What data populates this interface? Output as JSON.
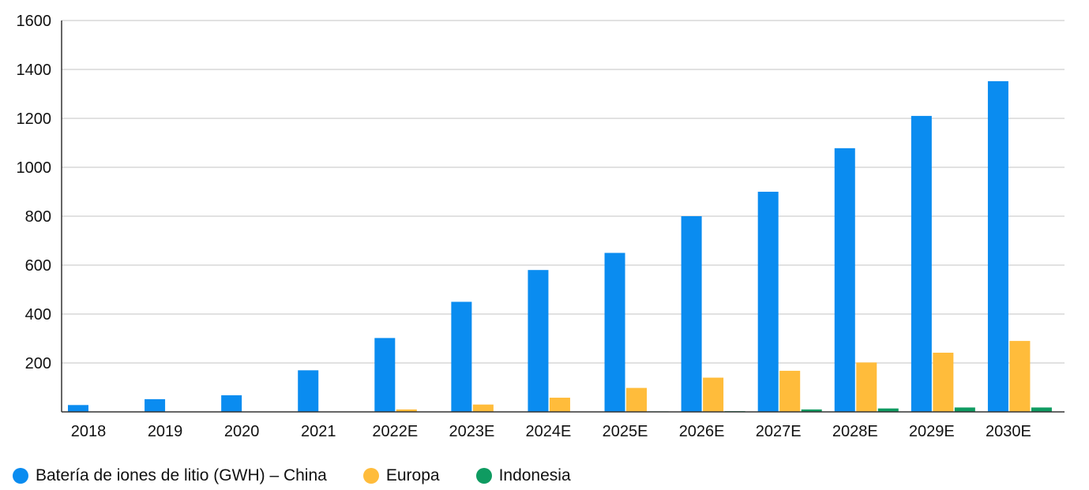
{
  "chart_data": {
    "type": "bar",
    "categories": [
      "2018",
      "2019",
      "2020",
      "2021",
      "2022E",
      "2023E",
      "2024E",
      "2025E",
      "2026E",
      "2027E",
      "2028E",
      "2029E",
      "2030E"
    ],
    "series": [
      {
        "name": "Batería de iones de litio (GWH) – China",
        "color": "#0a8cf0",
        "values": [
          28,
          52,
          68,
          170,
          302,
          450,
          580,
          650,
          800,
          900,
          1078,
          1210,
          1352
        ]
      },
      {
        "name": "Europa",
        "color": "#ffbc3b",
        "values": [
          0,
          0,
          0,
          0,
          10,
          30,
          58,
          98,
          140,
          168,
          202,
          242,
          290
        ]
      },
      {
        "name": "Indonesia",
        "color": "#0f9b61",
        "values": [
          0,
          0,
          0,
          0,
          0,
          0,
          0,
          2,
          3,
          10,
          14,
          18,
          18
        ]
      }
    ],
    "ylim": [
      0,
      1600
    ],
    "yticks": [
      "200",
      "400",
      "600",
      "800",
      "1000",
      "1200",
      "1400",
      "1600"
    ],
    "grid": true,
    "legend_position": "bottom-left",
    "title": "",
    "xlabel": "",
    "ylabel": ""
  }
}
